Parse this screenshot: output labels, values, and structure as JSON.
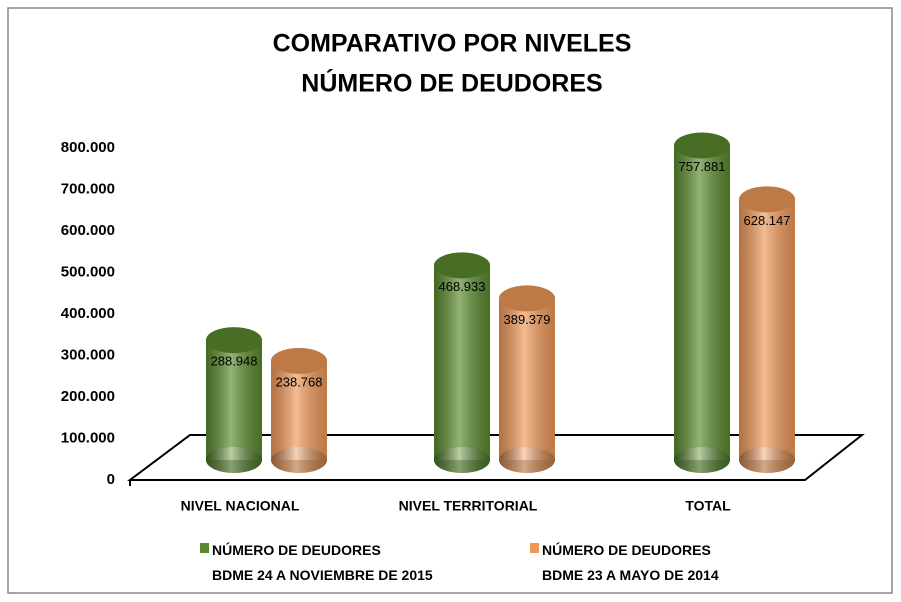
{
  "chart_data": {
    "type": "cylinder-bar",
    "title": "COMPARATIVO POR NIVELES",
    "subtitle": "NÚMERO DE DEUDORES",
    "categories": [
      "NIVEL NACIONAL",
      "NIVEL TERRITORIAL",
      "TOTAL"
    ],
    "series": [
      {
        "name": "NÚMERO DE DEUDORES\nBDME 24 A NOVIEMBRE DE 2015",
        "color": "#5a8a2e",
        "values": [
          288948,
          468933,
          757881
        ],
        "value_labels": [
          "288.948",
          "468.933",
          "757.881"
        ]
      },
      {
        "name": "NÚMERO DE DEUDORES\nBDME 23 A MAYO DE 2014",
        "color": "#ee9858",
        "values": [
          238768,
          389379,
          628147
        ],
        "value_labels": [
          "238.768",
          "389.379",
          "628.147"
        ]
      }
    ],
    "ylim": [
      0,
      800000
    ],
    "yticks": [
      0,
      {
        "value": 100000,
        "label": "100.000"
      },
      {
        "value": 200000,
        "label": "200.000"
      },
      {
        "value": 300000,
        "label": "300.000"
      },
      {
        "value": 400000,
        "label": "400.000"
      },
      {
        "value": 500000,
        "label": "500.000"
      },
      {
        "value": 600000,
        "label": "600.000"
      },
      {
        "value": 700000,
        "label": "700.000"
      },
      {
        "value": 800000,
        "label": "800.000"
      }
    ],
    "legend": "bottom"
  }
}
